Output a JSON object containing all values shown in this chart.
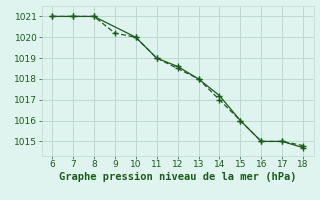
{
  "line1_x": [
    6,
    7,
    8,
    9,
    10,
    11,
    12,
    13,
    14,
    15,
    16,
    17,
    18
  ],
  "line1_y": [
    1021.0,
    1021.0,
    1021.0,
    1020.2,
    1020.0,
    1019.0,
    1018.5,
    1018.0,
    1017.0,
    1016.0,
    1015.0,
    1015.0,
    1014.8
  ],
  "line2_x": [
    6,
    7,
    8,
    10,
    11,
    12,
    13,
    14,
    15,
    16,
    17,
    18
  ],
  "line2_y": [
    1021.0,
    1021.0,
    1021.0,
    1020.0,
    1019.0,
    1018.6,
    1018.0,
    1017.2,
    1016.0,
    1015.0,
    1015.0,
    1014.7
  ],
  "line_color": "#1a5c1a",
  "bg_color": "#dff4ef",
  "grid_color": "#bcd9d2",
  "xlabel": "Graphe pression niveau de la mer (hPa)",
  "xlabel_color": "#1a5c1a",
  "xlabel_fontsize": 7.5,
  "tick_color": "#1a5c1a",
  "tick_fontsize": 6.5,
  "xlim": [
    5.5,
    18.5
  ],
  "ylim": [
    1014.3,
    1021.5
  ],
  "xticks": [
    6,
    7,
    8,
    9,
    10,
    11,
    12,
    13,
    14,
    15,
    16,
    17,
    18
  ],
  "yticks": [
    1015,
    1016,
    1017,
    1018,
    1019,
    1020,
    1021
  ]
}
